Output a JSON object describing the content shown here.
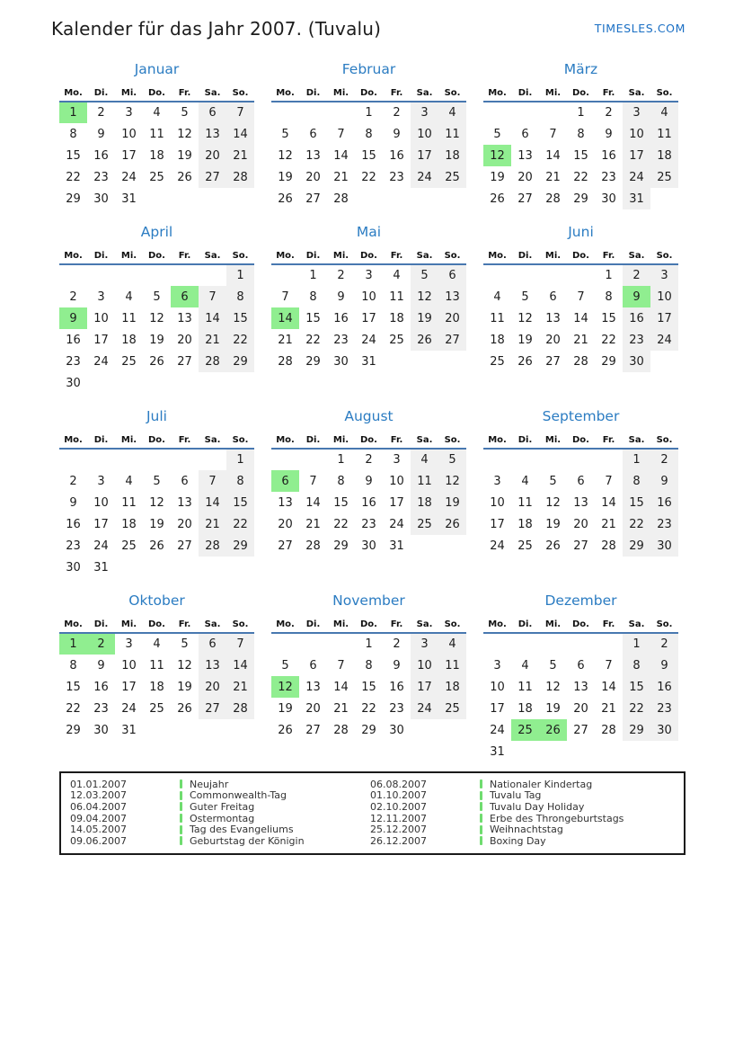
{
  "header": {
    "title": "Kalender für das Jahr 2007. (Tuvalu)",
    "brand": "TIMESLES.COM"
  },
  "weekdays": [
    "Mo.",
    "Di.",
    "Mi.",
    "Do.",
    "Fr.",
    "Sa.",
    "So."
  ],
  "colors": {
    "accent_blue": "#2b7cc2",
    "header_rule_blue": "#4878b0",
    "holiday_green": "#90ee90",
    "weekend_gray": "#f0f0f0",
    "legend_marker_green": "#6fdc6f"
  },
  "months": [
    {
      "name": "Januar",
      "holidays": [
        1
      ],
      "weeks": [
        [
          1,
          2,
          3,
          4,
          5,
          6,
          7
        ],
        [
          8,
          9,
          10,
          11,
          12,
          13,
          14
        ],
        [
          15,
          16,
          17,
          18,
          19,
          20,
          21
        ],
        [
          22,
          23,
          24,
          25,
          26,
          27,
          28
        ],
        [
          29,
          30,
          31,
          null,
          null,
          null,
          null
        ]
      ]
    },
    {
      "name": "Februar",
      "holidays": [],
      "weeks": [
        [
          null,
          null,
          null,
          1,
          2,
          3,
          4
        ],
        [
          5,
          6,
          7,
          8,
          9,
          10,
          11
        ],
        [
          12,
          13,
          14,
          15,
          16,
          17,
          18
        ],
        [
          19,
          20,
          21,
          22,
          23,
          24,
          25
        ],
        [
          26,
          27,
          28,
          null,
          null,
          null,
          null
        ]
      ]
    },
    {
      "name": "März",
      "holidays": [
        12
      ],
      "weeks": [
        [
          null,
          null,
          null,
          1,
          2,
          3,
          4
        ],
        [
          5,
          6,
          7,
          8,
          9,
          10,
          11
        ],
        [
          12,
          13,
          14,
          15,
          16,
          17,
          18
        ],
        [
          19,
          20,
          21,
          22,
          23,
          24,
          25
        ],
        [
          26,
          27,
          28,
          29,
          30,
          31,
          null
        ]
      ]
    },
    {
      "name": "April",
      "holidays": [
        6,
        9
      ],
      "weeks": [
        [
          null,
          null,
          null,
          null,
          null,
          null,
          1
        ],
        [
          2,
          3,
          4,
          5,
          6,
          7,
          8
        ],
        [
          9,
          10,
          11,
          12,
          13,
          14,
          15
        ],
        [
          16,
          17,
          18,
          19,
          20,
          21,
          22
        ],
        [
          23,
          24,
          25,
          26,
          27,
          28,
          29
        ],
        [
          30,
          null,
          null,
          null,
          null,
          null,
          null
        ]
      ]
    },
    {
      "name": "Mai",
      "holidays": [
        14
      ],
      "weeks": [
        [
          null,
          1,
          2,
          3,
          4,
          5,
          6
        ],
        [
          7,
          8,
          9,
          10,
          11,
          12,
          13
        ],
        [
          14,
          15,
          16,
          17,
          18,
          19,
          20
        ],
        [
          21,
          22,
          23,
          24,
          25,
          26,
          27
        ],
        [
          28,
          29,
          30,
          31,
          null,
          null,
          null
        ]
      ]
    },
    {
      "name": "Juni",
      "holidays": [
        9
      ],
      "weeks": [
        [
          null,
          null,
          null,
          null,
          1,
          2,
          3
        ],
        [
          4,
          5,
          6,
          7,
          8,
          9,
          10
        ],
        [
          11,
          12,
          13,
          14,
          15,
          16,
          17
        ],
        [
          18,
          19,
          20,
          21,
          22,
          23,
          24
        ],
        [
          25,
          26,
          27,
          28,
          29,
          30,
          null
        ]
      ]
    },
    {
      "name": "Juli",
      "holidays": [],
      "weeks": [
        [
          null,
          null,
          null,
          null,
          null,
          null,
          1
        ],
        [
          2,
          3,
          4,
          5,
          6,
          7,
          8
        ],
        [
          9,
          10,
          11,
          12,
          13,
          14,
          15
        ],
        [
          16,
          17,
          18,
          19,
          20,
          21,
          22
        ],
        [
          23,
          24,
          25,
          26,
          27,
          28,
          29
        ],
        [
          30,
          31,
          null,
          null,
          null,
          null,
          null
        ]
      ]
    },
    {
      "name": "August",
      "holidays": [
        6
      ],
      "weeks": [
        [
          null,
          null,
          1,
          2,
          3,
          4,
          5
        ],
        [
          6,
          7,
          8,
          9,
          10,
          11,
          12
        ],
        [
          13,
          14,
          15,
          16,
          17,
          18,
          19
        ],
        [
          20,
          21,
          22,
          23,
          24,
          25,
          26
        ],
        [
          27,
          28,
          29,
          30,
          31,
          null,
          null
        ]
      ]
    },
    {
      "name": "September",
      "holidays": [],
      "weeks": [
        [
          null,
          null,
          null,
          null,
          null,
          1,
          2
        ],
        [
          3,
          4,
          5,
          6,
          7,
          8,
          9
        ],
        [
          10,
          11,
          12,
          13,
          14,
          15,
          16
        ],
        [
          17,
          18,
          19,
          20,
          21,
          22,
          23
        ],
        [
          24,
          25,
          26,
          27,
          28,
          29,
          30
        ]
      ]
    },
    {
      "name": "Oktober",
      "holidays": [
        1,
        2
      ],
      "weeks": [
        [
          1,
          2,
          3,
          4,
          5,
          6,
          7
        ],
        [
          8,
          9,
          10,
          11,
          12,
          13,
          14
        ],
        [
          15,
          16,
          17,
          18,
          19,
          20,
          21
        ],
        [
          22,
          23,
          24,
          25,
          26,
          27,
          28
        ],
        [
          29,
          30,
          31,
          null,
          null,
          null,
          null
        ]
      ]
    },
    {
      "name": "November",
      "holidays": [
        12
      ],
      "weeks": [
        [
          null,
          null,
          null,
          1,
          2,
          3,
          4
        ],
        [
          5,
          6,
          7,
          8,
          9,
          10,
          11
        ],
        [
          12,
          13,
          14,
          15,
          16,
          17,
          18
        ],
        [
          19,
          20,
          21,
          22,
          23,
          24,
          25
        ],
        [
          26,
          27,
          28,
          29,
          30,
          null,
          null
        ]
      ]
    },
    {
      "name": "Dezember",
      "holidays": [
        25,
        26
      ],
      "weeks": [
        [
          null,
          null,
          null,
          null,
          null,
          1,
          2
        ],
        [
          3,
          4,
          5,
          6,
          7,
          8,
          9
        ],
        [
          10,
          11,
          12,
          13,
          14,
          15,
          16
        ],
        [
          17,
          18,
          19,
          20,
          21,
          22,
          23
        ],
        [
          24,
          25,
          26,
          27,
          28,
          29,
          30
        ],
        [
          31,
          null,
          null,
          null,
          null,
          null,
          null
        ]
      ]
    }
  ],
  "legend": {
    "left": [
      {
        "date": "01.01.2007",
        "name": "Neujahr"
      },
      {
        "date": "12.03.2007",
        "name": "Commonwealth-Tag"
      },
      {
        "date": "06.04.2007",
        "name": "Guter Freitag"
      },
      {
        "date": "09.04.2007",
        "name": "Ostermontag"
      },
      {
        "date": "14.05.2007",
        "name": "Tag des Evangeliums"
      },
      {
        "date": "09.06.2007",
        "name": "Geburtstag der Königin"
      }
    ],
    "right": [
      {
        "date": "06.08.2007",
        "name": "Nationaler Kindertag"
      },
      {
        "date": "01.10.2007",
        "name": "Tuvalu Tag"
      },
      {
        "date": "02.10.2007",
        "name": "Tuvalu Day Holiday"
      },
      {
        "date": "12.11.2007",
        "name": "Erbe des Throngeburtstags"
      },
      {
        "date": "25.12.2007",
        "name": "Weihnachtstag"
      },
      {
        "date": "26.12.2007",
        "name": "Boxing Day"
      }
    ]
  }
}
